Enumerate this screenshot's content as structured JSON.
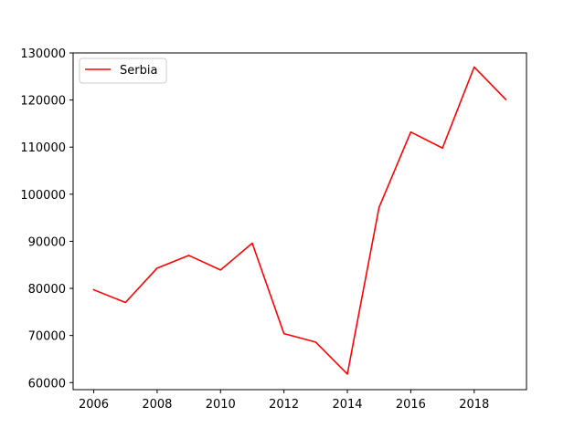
{
  "chart_data": {
    "type": "line",
    "title": "",
    "xlabel": "",
    "ylabel": "",
    "x": [
      2006,
      2007,
      2008,
      2009,
      2010,
      2011,
      2012,
      2013,
      2014,
      2015,
      2016,
      2017,
      2018,
      2019
    ],
    "series": [
      {
        "name": "Serbia",
        "color": "#ff0000",
        "values": [
          79700,
          77000,
          84300,
          87000,
          83900,
          89600,
          70400,
          68600,
          61800,
          97200,
          113200,
          109800,
          127000,
          120100
        ]
      }
    ],
    "xlim": [
      2005.35,
      2019.65
    ],
    "ylim": [
      58500,
      130000
    ],
    "xticks": [
      2006,
      2008,
      2010,
      2012,
      2014,
      2016,
      2018
    ],
    "yticks": [
      60000,
      70000,
      80000,
      90000,
      100000,
      110000,
      120000,
      130000
    ],
    "xtick_labels": [
      "2006",
      "2008",
      "2010",
      "2012",
      "2014",
      "2016",
      "2018"
    ],
    "ytick_labels": [
      "60000",
      "70000",
      "80000",
      "90000",
      "100000",
      "110000",
      "120000",
      "130000"
    ],
    "grid": false,
    "legend_position": "top-left"
  }
}
